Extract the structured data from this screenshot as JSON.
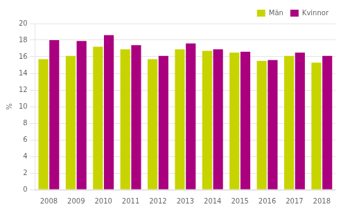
{
  "chart_data": {
    "type": "bar",
    "categories": [
      "2008",
      "2009",
      "2010",
      "2011",
      "2012",
      "2013",
      "2014",
      "2015",
      "2016",
      "2017",
      "2018"
    ],
    "series": [
      {
        "name": "Män",
        "color": "#c8d400",
        "values": [
          15.7,
          16.1,
          17.2,
          16.9,
          15.7,
          16.9,
          16.7,
          16.5,
          15.5,
          16.1,
          15.3
        ]
      },
      {
        "name": "Kvinnor",
        "color": "#aa007f",
        "values": [
          18.0,
          17.9,
          18.6,
          17.4,
          16.1,
          17.6,
          16.9,
          16.6,
          15.6,
          16.5,
          16.1
        ]
      }
    ],
    "ylabel": "%",
    "ylim": [
      0,
      20
    ],
    "yticks": [
      0,
      2,
      4,
      6,
      8,
      10,
      12,
      14,
      16,
      18,
      20
    ],
    "grid": true,
    "legend": "upper right"
  }
}
